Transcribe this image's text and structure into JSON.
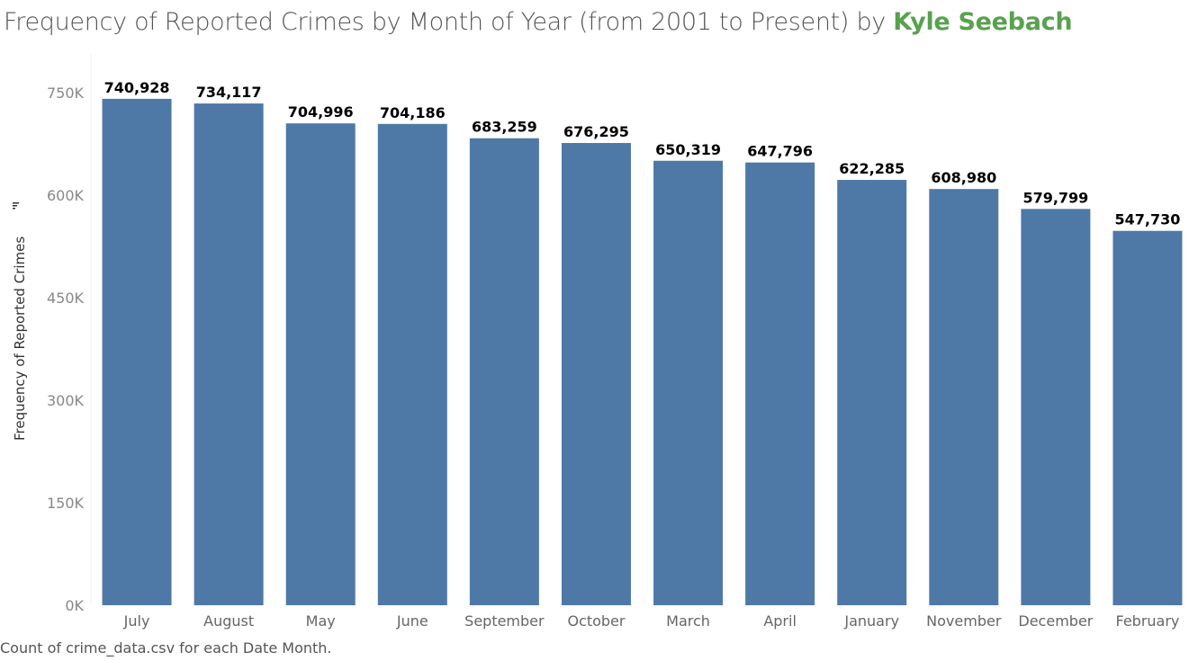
{
  "title": {
    "main": "Frequency of Reported Crimes by Month of Year (from 2001 to Present) by ",
    "author": "Kyle Seebach"
  },
  "footnote": "Count of crime_data.csv for each Date Month.",
  "colors": {
    "bar": "#4e79a7",
    "author": "#59a14f",
    "title": "#555555"
  },
  "chart_data": {
    "type": "bar",
    "title": "Frequency of Reported Crimes by Month of Year (from 2001 to Present) by Kyle Seebach",
    "xlabel": "",
    "ylabel": "Frequency of Reported Crimes",
    "categories": [
      "July",
      "August",
      "May",
      "June",
      "September",
      "October",
      "March",
      "April",
      "January",
      "November",
      "December",
      "February"
    ],
    "values": [
      740928,
      734117,
      704996,
      704186,
      683259,
      676295,
      650319,
      647796,
      622285,
      608980,
      579799,
      547730
    ],
    "value_labels": [
      "740,928",
      "734,117",
      "704,996",
      "704,186",
      "683,259",
      "676,295",
      "650,319",
      "647,796",
      "622,285",
      "608,980",
      "579,799",
      "547,730"
    ],
    "yticks": [
      0,
      150000,
      300000,
      450000,
      600000,
      750000
    ],
    "ytick_labels": [
      "0K",
      "150K",
      "300K",
      "450K",
      "600K",
      "750K"
    ],
    "ylim": [
      0,
      780000
    ],
    "sort_indicator": "descending",
    "grid": false,
    "legend": "none"
  }
}
